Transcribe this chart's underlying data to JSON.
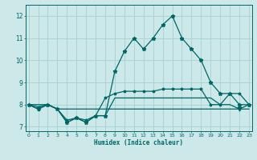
{
  "xlabel": "Humidex (Indice chaleur)",
  "x": [
    0,
    1,
    2,
    3,
    4,
    5,
    6,
    7,
    8,
    9,
    10,
    11,
    12,
    13,
    14,
    15,
    16,
    17,
    18,
    19,
    20,
    21,
    22,
    23
  ],
  "series1": [
    8.0,
    7.8,
    8.0,
    7.8,
    7.2,
    7.4,
    7.2,
    7.5,
    7.5,
    9.5,
    10.4,
    11.0,
    10.5,
    11.0,
    11.6,
    12.0,
    11.0,
    10.5,
    10.0,
    9.0,
    8.5,
    8.5,
    8.0,
    8.0
  ],
  "series2": [
    8.0,
    7.9,
    8.0,
    7.8,
    7.3,
    7.4,
    7.3,
    7.5,
    8.3,
    8.5,
    8.6,
    8.6,
    8.6,
    8.6,
    8.7,
    8.7,
    8.7,
    8.7,
    8.7,
    8.0,
    8.0,
    8.5,
    8.5,
    8.0
  ],
  "series3": [
    8.0,
    8.0,
    8.0,
    7.8,
    7.8,
    7.8,
    7.8,
    7.8,
    7.8,
    7.8,
    7.8,
    7.8,
    7.8,
    7.8,
    7.8,
    7.8,
    7.8,
    7.8,
    7.8,
    7.8,
    7.8,
    7.8,
    7.8,
    8.0
  ],
  "series4": [
    8.0,
    7.8,
    8.0,
    7.8,
    7.2,
    7.4,
    7.2,
    7.5,
    7.5,
    8.3,
    8.3,
    8.3,
    8.3,
    8.3,
    8.3,
    8.3,
    8.3,
    8.3,
    8.3,
    8.3,
    8.0,
    8.0,
    7.8,
    7.8
  ],
  "bg_color": "#cce8e8",
  "grid_color": "#aad4d4",
  "line_color": "#006666",
  "ylim": [
    6.8,
    12.5
  ],
  "xlim": [
    -0.3,
    23.3
  ],
  "yticks": [
    7,
    8,
    9,
    10,
    11,
    12
  ],
  "xticks": [
    0,
    1,
    2,
    3,
    4,
    5,
    6,
    7,
    8,
    9,
    10,
    11,
    12,
    13,
    14,
    15,
    16,
    17,
    18,
    19,
    20,
    21,
    22,
    23
  ],
  "xticklabels": [
    "0",
    "1",
    "2",
    "3",
    "4",
    "5",
    "6",
    "7",
    "8",
    "9",
    "10",
    "11",
    "12",
    "13",
    "14",
    "15",
    "16",
    "17",
    "18",
    "19",
    "20",
    "21",
    "22",
    "23"
  ]
}
